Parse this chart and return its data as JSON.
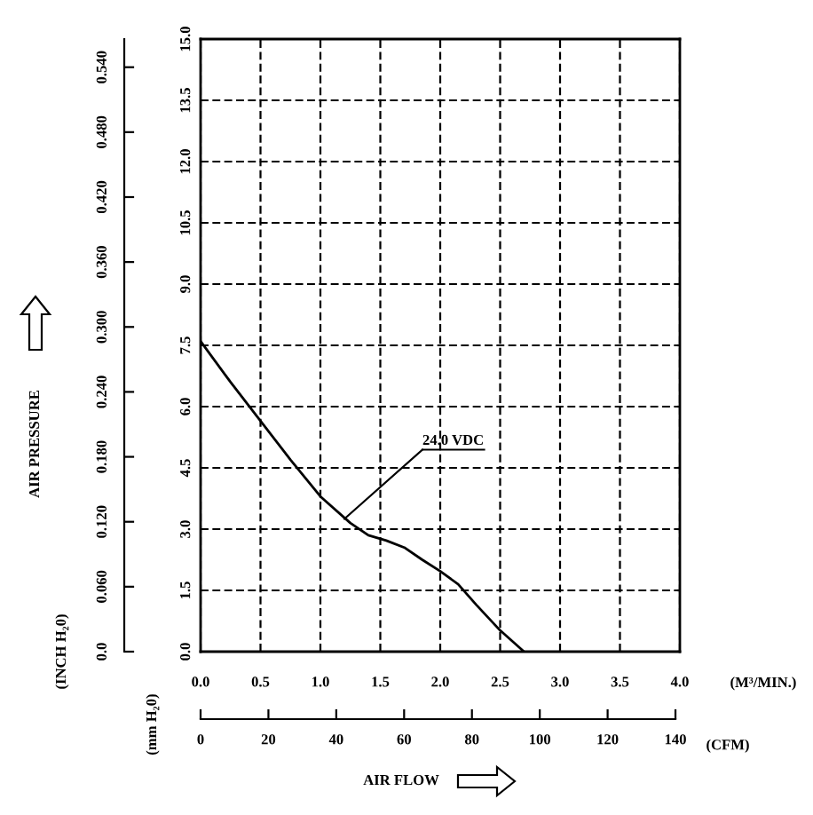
{
  "chart_data": {
    "type": "line",
    "x": [
      0.0,
      0.25,
      0.5,
      0.75,
      1.0,
      1.25,
      1.4,
      1.55,
      1.7,
      1.85,
      2.0,
      2.15,
      2.3,
      2.5,
      2.7
    ],
    "series": [
      {
        "color": "#000000",
        "values": [
          7.6,
          6.6,
          5.65,
          4.7,
          3.8,
          3.15,
          2.85,
          2.72,
          2.55,
          2.25,
          1.97,
          1.65,
          1.15,
          0.52,
          0.0
        ]
      }
    ],
    "xlim": [
      0.0,
      4.0
    ],
    "xticks": [
      {
        "value": 0,
        "label": "0.0"
      },
      {
        "value": 0.5,
        "label": "0.5"
      },
      {
        "value": 1,
        "label": "1.0"
      },
      {
        "value": 1.5,
        "label": "1.5"
      },
      {
        "value": 2,
        "label": "2.0"
      },
      {
        "value": 2.5,
        "label": "2.5"
      },
      {
        "value": 3,
        "label": "3.0"
      },
      {
        "value": 3.5,
        "label": "3.5"
      },
      {
        "value": 4,
        "label": "4.0"
      }
    ],
    "ylim": [
      0.0,
      15.0
    ],
    "yticks": [
      {
        "value": 0,
        "label": "0.0"
      },
      {
        "value": 1.5,
        "label": "1.5"
      },
      {
        "value": 3,
        "label": "3.0"
      },
      {
        "value": 4.5,
        "label": "4.5"
      },
      {
        "value": 6,
        "label": "6.0"
      },
      {
        "value": 7.5,
        "label": "7.5"
      },
      {
        "value": 9,
        "label": "9.0"
      },
      {
        "value": 10.5,
        "label": "10.5"
      },
      {
        "value": 12,
        "label": "12.0"
      },
      {
        "value": 13.5,
        "label": "13.5"
      },
      {
        "value": 15,
        "label": "15.0"
      }
    ],
    "x2lim": [
      0,
      141.3
    ],
    "x2ticks": [
      0,
      20,
      40,
      60,
      80,
      100,
      120,
      140
    ],
    "y2lim": [
      0,
      0.566
    ],
    "y2ticks": [
      {
        "value": 0,
        "label": "0.0"
      },
      {
        "value": 0.06,
        "label": "0.060"
      },
      {
        "value": 0.12,
        "label": "0.120"
      },
      {
        "value": 0.18,
        "label": "0.180"
      },
      {
        "value": 0.24,
        "label": "0.240"
      },
      {
        "value": 0.3,
        "label": "0.300"
      },
      {
        "value": 0.36,
        "label": "0.360"
      },
      {
        "value": 0.42,
        "label": "0.420"
      },
      {
        "value": 0.48,
        "label": "0.480"
      },
      {
        "value": 0.54,
        "label": "0.540"
      }
    ],
    "xlabel": "(M³/MIN.)",
    "x2label": "(CFM)",
    "ylabel": "(mm H₂0)",
    "y2label": "(INCH H₂0)",
    "annotations": [
      {
        "text": "24.0 VDC",
        "x": 1.2,
        "y": 3.25
      },
      "AIR PRESSURE",
      "AIR FLOW"
    ],
    "grid": true,
    "line_style": "solid",
    "marker": "none"
  }
}
